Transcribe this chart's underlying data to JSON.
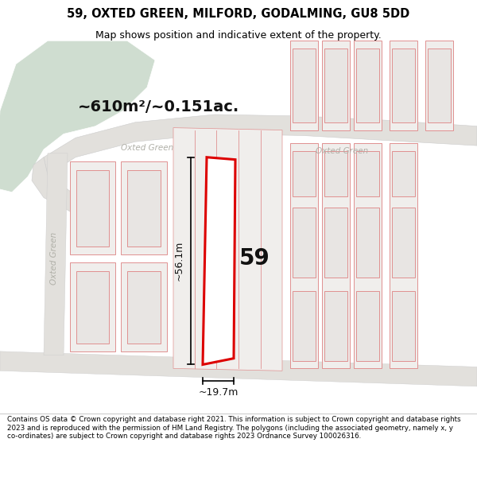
{
  "title": "59, OXTED GREEN, MILFORD, GODALMING, GU8 5DD",
  "subtitle": "Map shows position and indicative extent of the property.",
  "footer": "Contains OS data © Crown copyright and database right 2021. This information is subject to Crown copyright and database rights 2023 and is reproduced with the permission of HM Land Registry. The polygons (including the associated geometry, namely x, y co-ordinates) are subject to Crown copyright and database rights 2023 Ordnance Survey 100026316.",
  "area_label": "~610m²/~0.151ac.",
  "dim_width": "~19.7m",
  "dim_height": "~56.1m",
  "house_number": "59",
  "street_label_center1": "Oxted Green",
  "street_label_center2": "Oxted Green",
  "street_label_side": "Oxted Green",
  "map_bg": "#f7f7f5",
  "green_color": "#cfddd0",
  "road_color": "#e2e0dc",
  "parcel_fill": "#f0eeec",
  "parcel_inner_fill": "#e8e5e3",
  "parcel_stroke": "#e09090",
  "highlight_stroke": "#dd0000",
  "highlight_fill": "#ffffff",
  "title_fontsize": 10.5,
  "subtitle_fontsize": 9.0,
  "footer_fontsize": 6.3,
  "area_fontsize": 14,
  "dim_fontsize": 9,
  "house_fontsize": 20
}
